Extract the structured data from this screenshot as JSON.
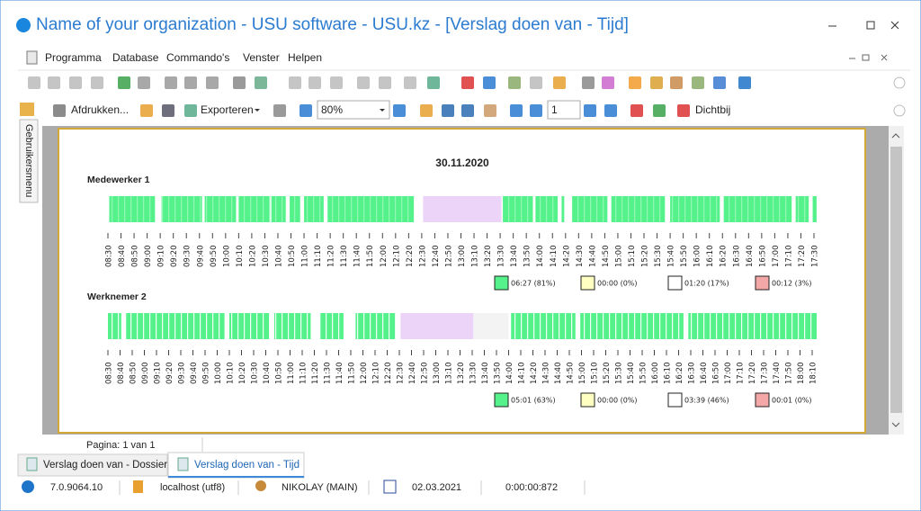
{
  "window": {
    "title": "Name of your organization - USU software - USU.kz - [Verslag doen van - Tijd]"
  },
  "menu": [
    "Programma",
    "Database",
    "Commando's",
    "Venster",
    "Helpen"
  ],
  "toolbar": {
    "print": "Afdrukken...",
    "export": "Exporteren",
    "zoom": "80%",
    "page": "1",
    "close": "Dichtbij"
  },
  "side_tab": "Gebruikersmenu",
  "report": {
    "date": "30.11.2020",
    "active_color": "#55f28c",
    "idle_color": "#ecd4f8",
    "away_color": "#f3f3f3",
    "rows": [
      {
        "name": "Medewerker 1",
        "ticks": [
          "08:30",
          "08:40",
          "08:50",
          "09:00",
          "09:10",
          "09:20",
          "09:30",
          "09:40",
          "09:50",
          "10:00",
          "10:10",
          "10:20",
          "10:30",
          "10:40",
          "10:50",
          "11:00",
          "11:10",
          "11:20",
          "11:30",
          "11:40",
          "11:50",
          "12:00",
          "12:10",
          "12:20",
          "12:30",
          "12:40",
          "12:50",
          "13:00",
          "13:10",
          "13:20",
          "13:30",
          "13:40",
          "13:50",
          "14:00",
          "14:10",
          "14:20",
          "14:30",
          "14:40",
          "14:50",
          "15:00",
          "15:10",
          "15:20",
          "15:30",
          "15:40",
          "15:50",
          "16:00",
          "16:10",
          "16:20",
          "16:30",
          "16:40",
          "16:50",
          "17:00",
          "17:10",
          "17:20",
          "17:30"
        ],
        "active": [
          [
            1,
            36
          ],
          [
            41,
            72
          ],
          [
            74,
            98
          ],
          [
            100,
            124
          ],
          [
            125,
            136
          ],
          [
            139,
            147
          ],
          [
            150,
            165
          ],
          [
            168,
            234
          ],
          [
            302,
            325
          ],
          [
            327,
            344
          ],
          [
            347,
            349
          ],
          [
            355,
            382
          ],
          [
            385,
            426
          ],
          [
            430,
            468
          ],
          [
            471,
            523
          ],
          [
            526,
            536
          ],
          [
            539,
            542
          ]
        ],
        "idle": [
          [
            241,
            301
          ]
        ],
        "away": [],
        "legend": [
          {
            "color": "#55f28c",
            "label": "06:27 (81%)"
          },
          {
            "color": "#ffffc2",
            "label": "00:00 (0%)"
          },
          {
            "color": "#ffffff",
            "label": "01:20 (17%)"
          },
          {
            "color": "#f4a7a7",
            "label": "00:12 (3%)"
          }
        ]
      },
      {
        "name": "Werknemer 2",
        "ticks": [
          "08:30",
          "08:40",
          "08:50",
          "09:00",
          "09:10",
          "09:20",
          "09:30",
          "09:40",
          "09:50",
          "10:00",
          "10:10",
          "10:20",
          "10:30",
          "10:40",
          "10:50",
          "11:00",
          "11:10",
          "11:20",
          "11:30",
          "11:40",
          "11:50",
          "12:00",
          "12:10",
          "12:20",
          "12:30",
          "12:40",
          "12:50",
          "13:00",
          "13:10",
          "13:20",
          "13:30",
          "13:40",
          "13:50",
          "14:00",
          "14:10",
          "14:20",
          "14:30",
          "14:40",
          "14:50",
          "15:00",
          "15:10",
          "15:20",
          "15:30",
          "15:40",
          "15:50",
          "16:00",
          "16:10",
          "16:20",
          "16:30",
          "16:40",
          "16:50",
          "17:00",
          "17:10",
          "17:20",
          "17:30",
          "17:40",
          "17:50",
          "18:00",
          "18:10"
        ],
        "active": [
          [
            0,
            11
          ],
          [
            15,
            96
          ],
          [
            100,
            133
          ],
          [
            137,
            167
          ],
          [
            175,
            194
          ],
          [
            204,
            237
          ],
          [
            332,
            385
          ],
          [
            389,
            474
          ],
          [
            478,
            584
          ]
        ],
        "idle": [
          [
            241,
            301
          ]
        ],
        "away": [
          [
            301,
            330
          ]
        ],
        "legend": [
          {
            "color": "#55f28c",
            "label": "05:01 (63%)"
          },
          {
            "color": "#ffffc2",
            "label": "00:00 (0%)"
          },
          {
            "color": "#ffffff",
            "label": "03:39 (46%)"
          },
          {
            "color": "#f4a7a7",
            "label": "00:01 (0%)"
          }
        ]
      }
    ]
  },
  "pager": "Pagina: 1 van 1",
  "tabs": [
    "Verslag doen van - Dossier",
    "Verslag doen van - Tijd"
  ],
  "status": {
    "version": "7.0.9064.10",
    "server": "localhost (utf8)",
    "user": "NIKOLAY (MAIN)",
    "date": "02.03.2021",
    "timer": "0:00:00:872"
  }
}
